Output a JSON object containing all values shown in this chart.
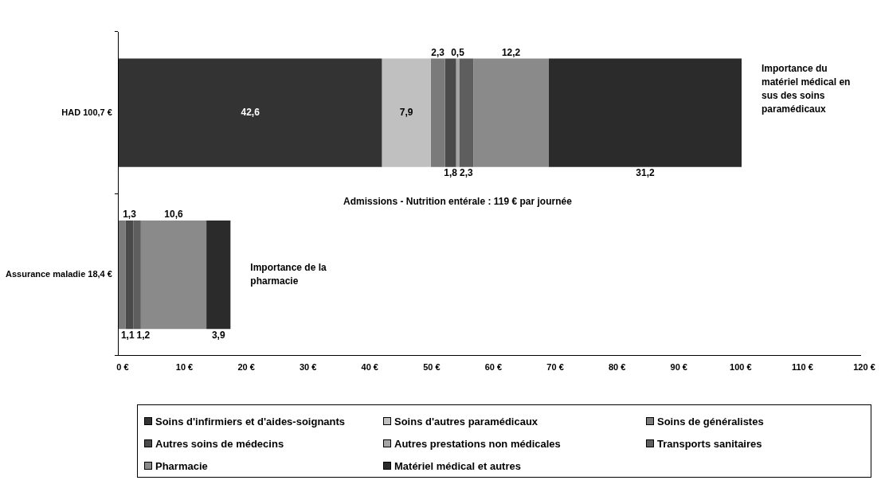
{
  "chart_data": {
    "type": "bar",
    "orientation": "horizontal",
    "stacked": true,
    "categories": [
      "HAD 100,7 €",
      "Assurance maladie 18,4 €"
    ],
    "series": [
      {
        "name": "Soins d'infirmiers et d'aides-soignants",
        "color": "#333333",
        "values": [
          42.6,
          0
        ],
        "value_labels": [
          "42,6",
          null
        ]
      },
      {
        "name": "Soins d'autres paramédicaux",
        "color": "#c0c0c0",
        "values": [
          7.9,
          0
        ],
        "value_labels": [
          "7,9",
          null
        ]
      },
      {
        "name": "Soins de généralistes",
        "color": "#7a7a7a",
        "values": [
          2.3,
          1.1
        ],
        "value_labels": [
          "2,3",
          "1,1"
        ]
      },
      {
        "name": "Autres soins de médecins",
        "color": "#4a4a4a",
        "values": [
          1.8,
          1.3
        ],
        "value_labels": [
          "1,8",
          "1,3"
        ]
      },
      {
        "name": "Autres prestations non médicales",
        "color": "#a6a6a6",
        "values": [
          0.5,
          0
        ],
        "value_labels": [
          "0,5",
          null
        ]
      },
      {
        "name": "Transports sanitaires",
        "color": "#5e5e5e",
        "values": [
          2.3,
          1.2
        ],
        "value_labels": [
          "2,3",
          "1,2"
        ]
      },
      {
        "name": "Pharmacie",
        "color": "#8a8a8a",
        "values": [
          12.2,
          10.6
        ],
        "value_labels": [
          "12,2",
          "10,6"
        ]
      },
      {
        "name": "Matériel médical et autres",
        "color": "#2b2b2b",
        "values": [
          31.2,
          3.9
        ],
        "value_labels": [
          "31,2",
          "3,9"
        ]
      }
    ],
    "xlim": [
      0,
      120
    ],
    "xticks": [
      {
        "value": 0,
        "label": "0 €"
      },
      {
        "value": 10,
        "label": "10 €"
      },
      {
        "value": 20,
        "label": "20 €"
      },
      {
        "value": 30,
        "label": "30 €"
      },
      {
        "value": 40,
        "label": "40 €"
      },
      {
        "value": 50,
        "label": "50 €"
      },
      {
        "value": 60,
        "label": "60 €"
      },
      {
        "value": 70,
        "label": "70 €"
      },
      {
        "value": 80,
        "label": "80 €"
      },
      {
        "value": 90,
        "label": "90 €"
      },
      {
        "value": 100,
        "label": "100 €"
      },
      {
        "value": 110,
        "label": "110 €"
      },
      {
        "value": 120,
        "label": "120 €"
      }
    ],
    "grid": false,
    "legend": "bottom",
    "annotations": [
      "Importance du matériel médical en sus des soins paramédicaux",
      "Admissions - Nutrition entérale : 119 € par journée",
      "Importance de la pharmacie"
    ]
  }
}
